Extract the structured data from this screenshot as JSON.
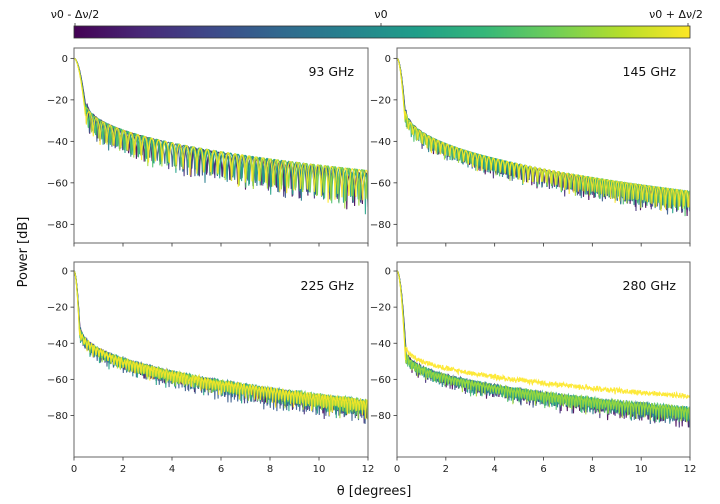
{
  "chart_data": {
    "type": "line",
    "title": "",
    "xlabel": "θ [degrees]",
    "ylabel": "Power [dB]",
    "colorbar": {
      "colormap": "viridis",
      "tick_labels": [
        "ν0 - Δν/2",
        "ν0",
        "ν0 + Δν/2"
      ],
      "colors": [
        "#440154",
        "#482878",
        "#3e4989",
        "#31688e",
        "#26828e",
        "#1f9e89",
        "#35b779",
        "#6ece58",
        "#b5de2b",
        "#fde725"
      ]
    },
    "xlim": [
      0,
      12
    ],
    "x_ticks": [
      "0",
      "2",
      "4",
      "6",
      "8",
      "10",
      "12"
    ],
    "x_tick_values": [
      0,
      2,
      4,
      6,
      8,
      10,
      12
    ],
    "n_series_per_panel": 8,
    "panels": [
      {
        "label": "93 GHz",
        "ylim": [
          -89,
          5
        ],
        "y_ticks": [
          "0",
          "−20",
          "−40",
          "−60",
          "−80"
        ],
        "y_tick_values": [
          0,
          -20,
          -40,
          -60,
          -80
        ],
        "main_lobe_width_deg": 0.5,
        "first_sidelobe_db": -20,
        "envelope_db_at_12deg": -54,
        "sidelobe_period_deg": 0.3,
        "null_depth_db": 22,
        "shows_x_ticks": false
      },
      {
        "label": "145 GHz",
        "ylim": [
          -89,
          5
        ],
        "y_ticks": [
          "0",
          "−20",
          "−40",
          "−60",
          "−80"
        ],
        "y_tick_values": [
          0,
          -20,
          -40,
          -60,
          -80
        ],
        "main_lobe_width_deg": 0.35,
        "first_sidelobe_db": -23,
        "envelope_db_at_12deg": -64,
        "sidelobe_period_deg": 0.2,
        "null_depth_db": 14,
        "shows_x_ticks": false
      },
      {
        "label": "225 GHz",
        "ylim": [
          -103,
          5
        ],
        "y_ticks": [
          "0",
          "−20",
          "−40",
          "−60",
          "−80"
        ],
        "y_tick_values": [
          0,
          -20,
          -40,
          -60,
          -80
        ],
        "main_lobe_width_deg": 0.25,
        "first_sidelobe_db": -30,
        "envelope_db_at_12deg": -72,
        "sidelobe_period_deg": 0.13,
        "null_depth_db": 14,
        "shows_x_ticks": true
      },
      {
        "label": "280 GHz",
        "ylim": [
          -103,
          5
        ],
        "y_ticks": [
          "0",
          "−20",
          "−40",
          "−60",
          "−80"
        ],
        "y_tick_values": [
          0,
          -20,
          -40,
          -60,
          -80
        ],
        "main_lobe_width_deg": 0.38,
        "first_sidelobe_db": -44,
        "envelope_db_at_12deg": -76,
        "sidelobe_period_deg": 0.12,
        "null_depth_db": 13,
        "shows_x_ticks": true
      }
    ]
  }
}
